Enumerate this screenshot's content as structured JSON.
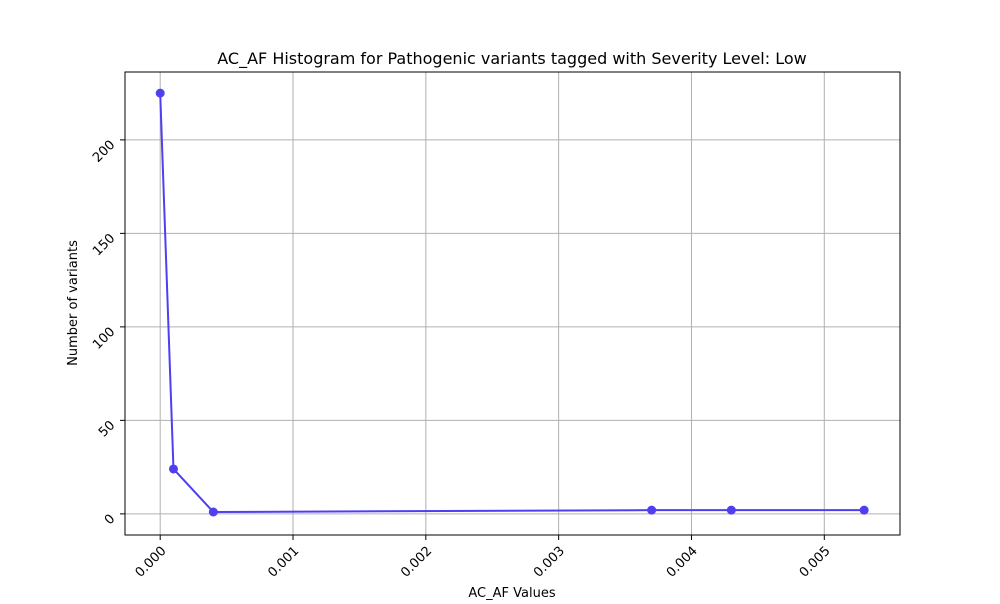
{
  "chart_data": {
    "type": "line",
    "title": "AC_AF Histogram for Pathogenic variants tagged with Severity Level: Low",
    "xlabel": "AC_AF Values",
    "ylabel": "Number of variants",
    "xlim": [
      -0.000265,
      0.00557
    ],
    "ylim": [
      -11.3,
      236.3
    ],
    "x_ticks": [
      0.0,
      0.001,
      0.002,
      0.003,
      0.004,
      0.005
    ],
    "x_tick_labels": [
      "0.000",
      "0.001",
      "0.002",
      "0.003",
      "0.004",
      "0.005"
    ],
    "y_ticks": [
      0,
      50,
      100,
      150,
      200
    ],
    "y_tick_labels": [
      "0",
      "50",
      "100",
      "150",
      "200"
    ],
    "grid": true,
    "tick_label_rotation_deg": 45,
    "series": [
      {
        "color": "#4f3ff0",
        "marker": "circle",
        "x": [
          0.0,
          0.0001,
          0.0004,
          0.0037,
          0.0043,
          0.0053
        ],
        "y": [
          225,
          24,
          1,
          2,
          2,
          2
        ]
      }
    ]
  }
}
